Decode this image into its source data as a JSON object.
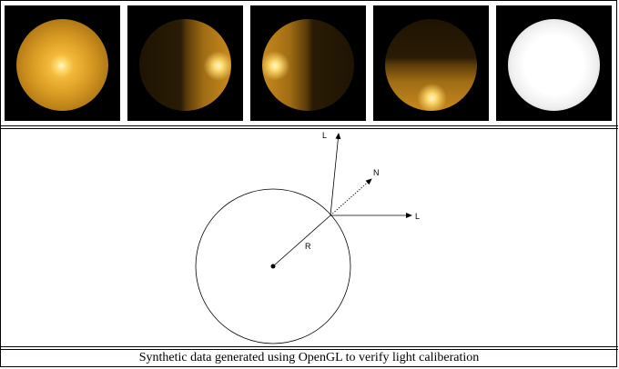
{
  "images": [
    {
      "name": "sphere-front-light"
    },
    {
      "name": "sphere-right-light"
    },
    {
      "name": "sphere-left-light"
    },
    {
      "name": "sphere-bottom-light"
    },
    {
      "name": "sphere-albedo-white"
    }
  ],
  "diagram": {
    "light_label_top": "L",
    "normal_label": "N",
    "light_label_right": "L",
    "radius_label": "R"
  },
  "caption": "Synthetic data generated using OpenGL to verify light caliberation",
  "colors": {
    "sphere_gold": "#f0b432",
    "background": "#000000"
  }
}
